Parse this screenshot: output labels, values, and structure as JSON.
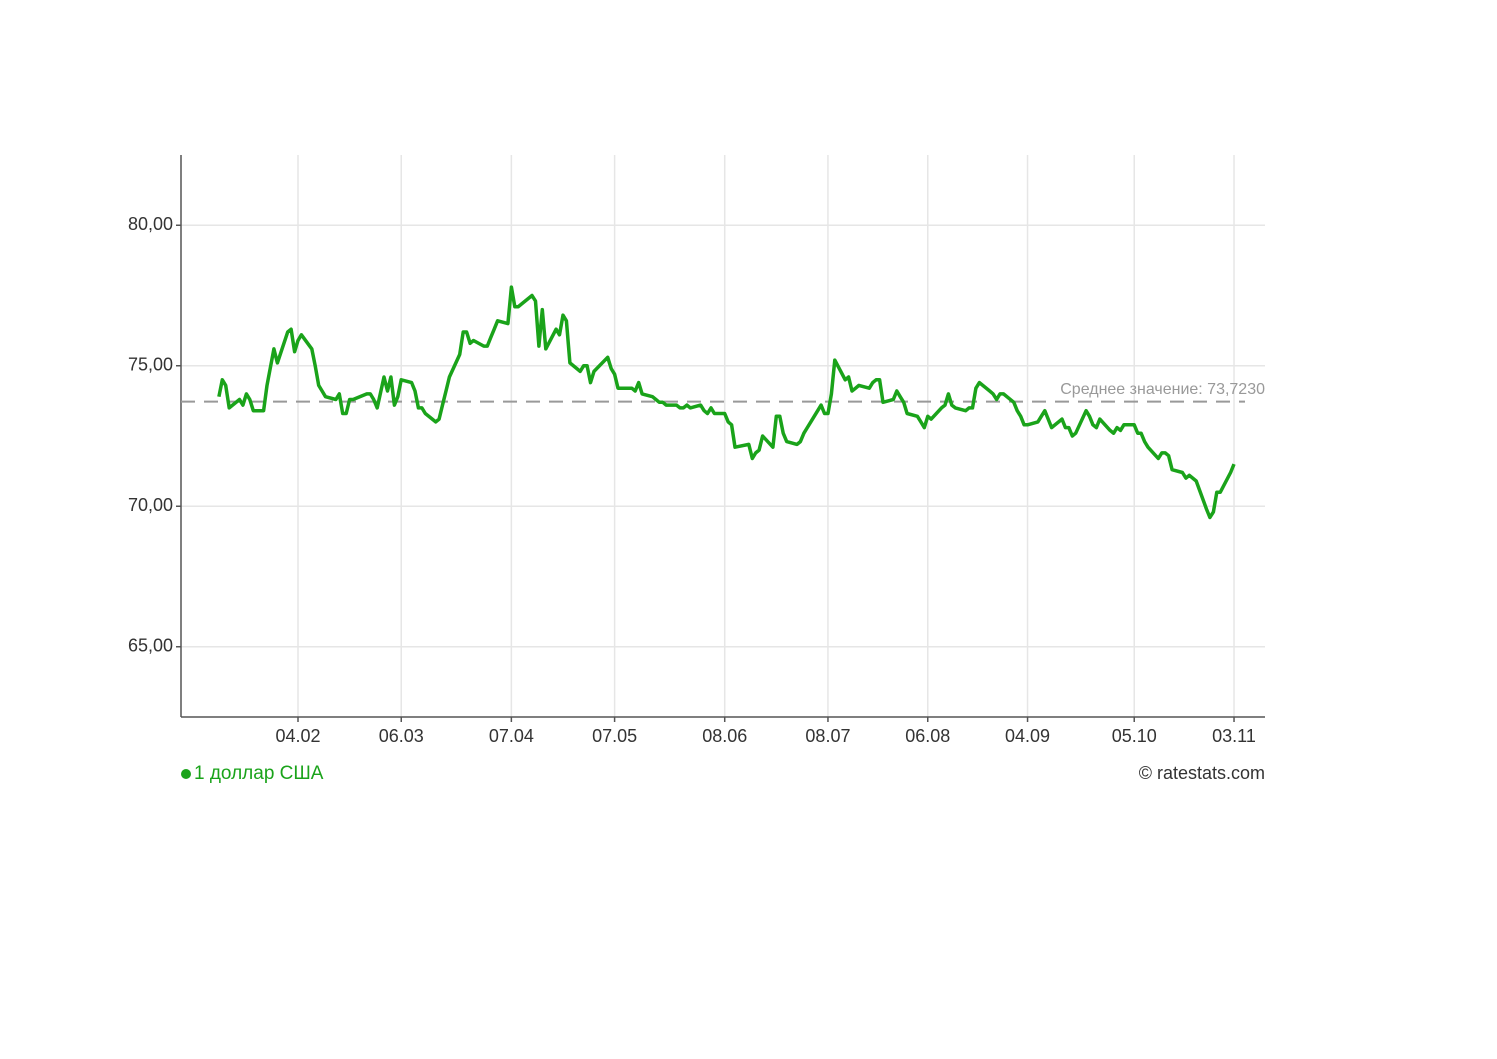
{
  "chart_data": {
    "type": "line",
    "x": [
      "12.01",
      "13.01",
      "14.01",
      "15.01",
      "18.01",
      "19.01",
      "20.01",
      "21.01",
      "22.01",
      "25.01",
      "26.01",
      "28.01",
      "29.01",
      "01.02",
      "02.02",
      "03.02",
      "04.02",
      "05.02",
      "08.02",
      "09.02",
      "10.02",
      "11.02",
      "12.02",
      "15.02",
      "16.02",
      "17.02",
      "18.02",
      "19.02",
      "20.02",
      "24.02",
      "25.02",
      "26.02",
      "27.02",
      "01.03",
      "02.03",
      "03.03",
      "04.03",
      "05.03",
      "06.03",
      "09.03",
      "10.03",
      "11.03",
      "12.03",
      "13.03",
      "16.03",
      "17.03",
      "18.03",
      "19.03",
      "20.03",
      "23.03",
      "24.03",
      "25.03",
      "26.03",
      "27.03",
      "30.03",
      "31.03",
      "01.04",
      "02.04",
      "03.04",
      "06.04",
      "07.04",
      "08.04",
      "09.04",
      "10.04",
      "13.04",
      "14.04",
      "15.04",
      "16.04",
      "17.04",
      "20.04",
      "21.04",
      "22.04",
      "23.04",
      "24.04",
      "27.04",
      "28.04",
      "29.04",
      "30.04",
      "01.05",
      "05.05",
      "06.05",
      "07.05",
      "08.05",
      "12.05",
      "13.05",
      "14.05",
      "15.05",
      "18.05",
      "19.05",
      "20.05",
      "21.05",
      "22.05",
      "25.05",
      "26.05",
      "27.05",
      "28.05",
      "29.05",
      "01.06",
      "02.06",
      "03.06",
      "04.06",
      "05.06",
      "08.06",
      "09.06",
      "10.06",
      "11.06",
      "15.06",
      "16.06",
      "17.06",
      "18.06",
      "19.06",
      "22.06",
      "23.06",
      "24.06",
      "25.06",
      "26.06",
      "29.06",
      "30.06",
      "01.07",
      "02.07",
      "03.07",
      "06.07",
      "07.07",
      "08.07",
      "09.07",
      "10.07",
      "13.07",
      "14.07",
      "15.07",
      "16.07",
      "17.07",
      "20.07",
      "21.07",
      "22.07",
      "23.07",
      "24.07",
      "27.07",
      "28.07",
      "29.07",
      "30.07",
      "31.07",
      "03.08",
      "04.08",
      "05.08",
      "06.08",
      "07.08",
      "10.08",
      "11.08",
      "12.08",
      "13.08",
      "14.08",
      "17.08",
      "18.08",
      "19.08",
      "20.08",
      "21.08",
      "24.08",
      "25.08",
      "26.08",
      "27.08",
      "28.08",
      "31.08",
      "01.09",
      "02.09",
      "03.09",
      "04.09",
      "07.09",
      "08.09",
      "09.09",
      "10.09",
      "11.09",
      "14.09",
      "15.09",
      "16.09",
      "17.09",
      "18.09",
      "21.09",
      "22.09",
      "23.09",
      "24.09",
      "25.09",
      "28.09",
      "29.09",
      "30.09",
      "01.10",
      "02.10",
      "05.10",
      "06.10",
      "07.10",
      "08.10",
      "09.10",
      "12.10",
      "13.10",
      "14.10",
      "15.10",
      "16.10",
      "19.10",
      "20.10",
      "21.10",
      "22.10",
      "23.10",
      "26.10",
      "27.10",
      "28.10",
      "29.10",
      "30.10",
      "02.11",
      "03.11"
    ],
    "series": [
      {
        "name": "1 доллар США",
        "color": "#1aa31a",
        "values": [
          73.9,
          74.5,
          74.3,
          73.5,
          73.8,
          73.6,
          74.0,
          73.8,
          73.4,
          73.4,
          74.3,
          75.6,
          75.1,
          76.2,
          76.3,
          75.5,
          75.9,
          76.1,
          75.6,
          75.0,
          74.3,
          74.1,
          73.9,
          73.8,
          74.0,
          73.3,
          73.3,
          73.8,
          73.8,
          74.0,
          74.0,
          73.8,
          73.5,
          74.6,
          74.1,
          74.6,
          73.6,
          73.9,
          74.5,
          74.4,
          74.1,
          73.5,
          73.5,
          73.3,
          73.0,
          73.1,
          73.6,
          74.1,
          74.6,
          75.4,
          76.2,
          76.2,
          75.8,
          75.9,
          75.7,
          75.7,
          76.0,
          76.3,
          76.6,
          76.5,
          77.8,
          77.1,
          77.1,
          77.2,
          77.5,
          77.3,
          75.7,
          77.0,
          75.6,
          76.3,
          76.1,
          76.8,
          76.6,
          75.1,
          74.8,
          75.0,
          75.0,
          74.4,
          74.8,
          75.3,
          74.9,
          74.7,
          74.2,
          74.2,
          74.1,
          74.4,
          74.0,
          73.9,
          73.8,
          73.7,
          73.7,
          73.6,
          73.6,
          73.5,
          73.5,
          73.6,
          73.5,
          73.6,
          73.4,
          73.3,
          73.5,
          73.3,
          73.3,
          73.0,
          72.9,
          72.1,
          72.2,
          71.7,
          71.9,
          72.0,
          72.5,
          72.1,
          73.2,
          73.2,
          72.6,
          72.3,
          72.2,
          72.3,
          72.6,
          72.8,
          73.0,
          73.6,
          73.3,
          73.3,
          74.0,
          75.2,
          74.5,
          74.6,
          74.1,
          74.2,
          74.3,
          74.2,
          74.4,
          74.5,
          74.5,
          73.7,
          73.8,
          74.1,
          73.9,
          73.7,
          73.3,
          73.2,
          73.0,
          72.8,
          73.2,
          73.1,
          73.5,
          73.6,
          74.0,
          73.6,
          73.5,
          73.4,
          73.5,
          73.5,
          74.2,
          74.4,
          74.1,
          74.0,
          73.8,
          74.0,
          74.0,
          73.7,
          73.4,
          73.2,
          72.9,
          72.9,
          73.0,
          73.2,
          73.4,
          73.1,
          72.8,
          73.1,
          72.8,
          72.8,
          72.5,
          72.6,
          73.4,
          73.2,
          72.9,
          72.8,
          73.1,
          72.7,
          72.6,
          72.8,
          72.7,
          72.9,
          72.9,
          72.6,
          72.6,
          72.3,
          72.1,
          71.7,
          71.9,
          71.9,
          71.8,
          71.3,
          71.2,
          71.0,
          71.1,
          71.0,
          70.9,
          69.9,
          69.6,
          69.8,
          70.5,
          70.5,
          71.2,
          71.5
        ]
      }
    ],
    "xlim": [
      "01.01",
      "12.11"
    ],
    "xticks": [
      "04.02",
      "06.03",
      "07.04",
      "07.05",
      "08.06",
      "08.07",
      "06.08",
      "04.09",
      "05.10",
      "03.11"
    ],
    "ylim": [
      62.5,
      82.5
    ],
    "yticks": [
      {
        "value": 65,
        "label": "65,00"
      },
      {
        "value": 70,
        "label": "70,00"
      },
      {
        "value": 75,
        "label": "75,00"
      },
      {
        "value": 80,
        "label": "80,00"
      }
    ],
    "mean": {
      "value": 73.723,
      "label": "Среднее значение: 73,7230"
    },
    "grid": true,
    "credit": "© ratestats.com"
  }
}
